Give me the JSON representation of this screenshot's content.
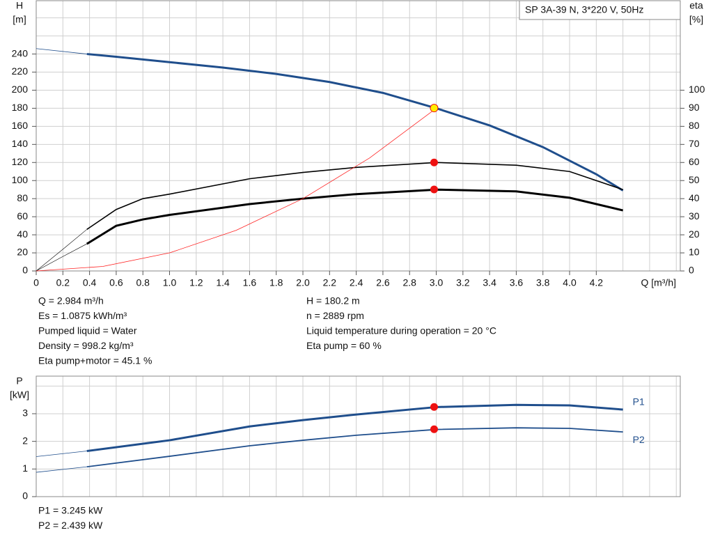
{
  "chart_data": [
    {
      "type": "line",
      "title": "SP 3A-39 N, 3*220 V, 50Hz",
      "x_label": "Q [m³/h]",
      "y_label": [
        "H",
        "[m]"
      ],
      "y2_label": [
        "eta",
        "[%]"
      ],
      "xlim": [
        0,
        4.83
      ],
      "xticks": [
        0,
        0.2,
        0.4,
        0.6,
        0.8,
        {
          "value": 1,
          "label": "1.0"
        },
        1.2,
        1.4,
        1.6,
        1.8,
        {
          "value": 2,
          "label": "2.0"
        },
        2.2,
        2.4,
        2.6,
        2.8,
        {
          "value": 3,
          "label": "3.0"
        },
        3.2,
        3.4,
        3.6,
        3.8,
        {
          "value": 4,
          "label": "4.0"
        },
        4.2
      ],
      "ylim": [
        0,
        299
      ],
      "yticks": [
        0,
        20,
        40,
        60,
        80,
        100,
        120,
        140,
        160,
        180,
        200,
        220,
        240
      ],
      "y2lim": [
        0,
        149.5
      ],
      "y2ticks": [
        0,
        10,
        20,
        30,
        40,
        50,
        60,
        70,
        80,
        90,
        100
      ],
      "grid": true,
      "series": [
        {
          "color": "#1f4e8c",
          "width": 3,
          "x": [
            0.38,
            0.6,
            1.0,
            1.4,
            1.8,
            2.2,
            2.6,
            3.0,
            3.4,
            3.8,
            4.2,
            4.4
          ],
          "values": [
            240,
            237,
            231,
            225,
            218,
            209,
            197,
            180,
            161,
            137,
            107,
            89
          ]
        },
        {
          "color": "#1f4e8c",
          "width": 0.8,
          "x": [
            0,
            0.38
          ],
          "values": [
            246,
            240
          ]
        },
        {
          "color": "#000000",
          "width": 1.6,
          "axis": "y2",
          "x": [
            0.38,
            0.6,
            0.8,
            1.0,
            1.6,
            2.0,
            2.4,
            3.0,
            3.6,
            4.0,
            4.4
          ],
          "values": [
            23,
            34,
            40,
            42.5,
            51,
            54.5,
            57.3,
            60,
            58.5,
            55,
            45
          ]
        },
        {
          "color": "#000000",
          "width": 0.6,
          "axis": "y2",
          "x": [
            0,
            0.2,
            0.38
          ],
          "values": [
            0,
            12,
            23
          ]
        },
        {
          "color": "#000000",
          "width": 3,
          "axis": "y2",
          "x": [
            0.38,
            0.6,
            0.8,
            1.0,
            1.6,
            2.0,
            2.4,
            3.0,
            3.6,
            4.0,
            4.4
          ],
          "values": [
            15,
            25,
            28.5,
            31,
            37,
            40,
            42.5,
            45,
            44,
            40.5,
            33.5
          ]
        },
        {
          "color": "#000000",
          "width": 0.6,
          "axis": "y2",
          "x": [
            0,
            0.2,
            0.38
          ],
          "values": [
            0,
            8,
            15
          ]
        },
        {
          "color": "#ff2020",
          "width": 0.8,
          "x": [
            0,
            0.5,
            1.0,
            1.5,
            2.0,
            2.5,
            3.0
          ],
          "values": [
            0,
            5,
            20,
            45,
            80,
            125,
            180
          ]
        }
      ],
      "points": [
        {
          "color": "#ffee00",
          "x": 2.984,
          "value": 180.2
        },
        {
          "color": "#ee1111",
          "axis": "y2",
          "x": 2.984,
          "value": 60
        },
        {
          "color": "#ee1111",
          "axis": "y2",
          "x": 2.984,
          "value": 45.1
        }
      ],
      "annotations": [
        [
          "Q = 2.984 m³/h",
          "Es = 1.0875 kWh/m³",
          "Pumped liquid = Water",
          "Density = 998.2 kg/m³",
          "Eta pump+motor = 45.1 %"
        ],
        [
          "H = 180.2 m",
          "n = 2889 rpm",
          "Liquid temperature during operation = 20 °C",
          "Eta pump = 60 %"
        ]
      ]
    },
    {
      "type": "line",
      "y_label": [
        "P",
        "[kW]"
      ],
      "xlim": [
        0,
        4.83
      ],
      "ylim": [
        0,
        4.36
      ],
      "yticks": [
        0,
        1,
        2,
        3
      ],
      "grid": true,
      "series": [
        {
          "name": "P1",
          "color": "#1f4e8c",
          "width": 3,
          "x": [
            0.38,
            1.0,
            1.6,
            2.0,
            2.4,
            3.0,
            3.6,
            4.0,
            4.4
          ],
          "values": [
            1.65,
            2.04,
            2.54,
            2.77,
            2.97,
            3.24,
            3.32,
            3.3,
            3.15
          ]
        },
        {
          "color": "#1f4e8c",
          "width": 0.8,
          "x": [
            0,
            0.38
          ],
          "values": [
            1.45,
            1.65
          ]
        },
        {
          "name": "P2",
          "color": "#1f4e8c",
          "width": 1.8,
          "x": [
            0.38,
            1.0,
            1.6,
            2.0,
            2.4,
            3.0,
            3.6,
            4.0,
            4.4
          ],
          "values": [
            1.08,
            1.46,
            1.84,
            2.04,
            2.22,
            2.43,
            2.49,
            2.47,
            2.34
          ]
        },
        {
          "color": "#1f4e8c",
          "width": 0.8,
          "x": [
            0,
            0.38
          ],
          "values": [
            0.88,
            1.08
          ]
        }
      ],
      "points": [
        {
          "color": "#ee1111",
          "x": 2.984,
          "value": 3.245
        },
        {
          "color": "#ee1111",
          "x": 2.984,
          "value": 2.439
        }
      ],
      "annotations": [
        [
          "P1 = 3.245 kW",
          "P2 = 2.439 kW"
        ]
      ]
    }
  ]
}
